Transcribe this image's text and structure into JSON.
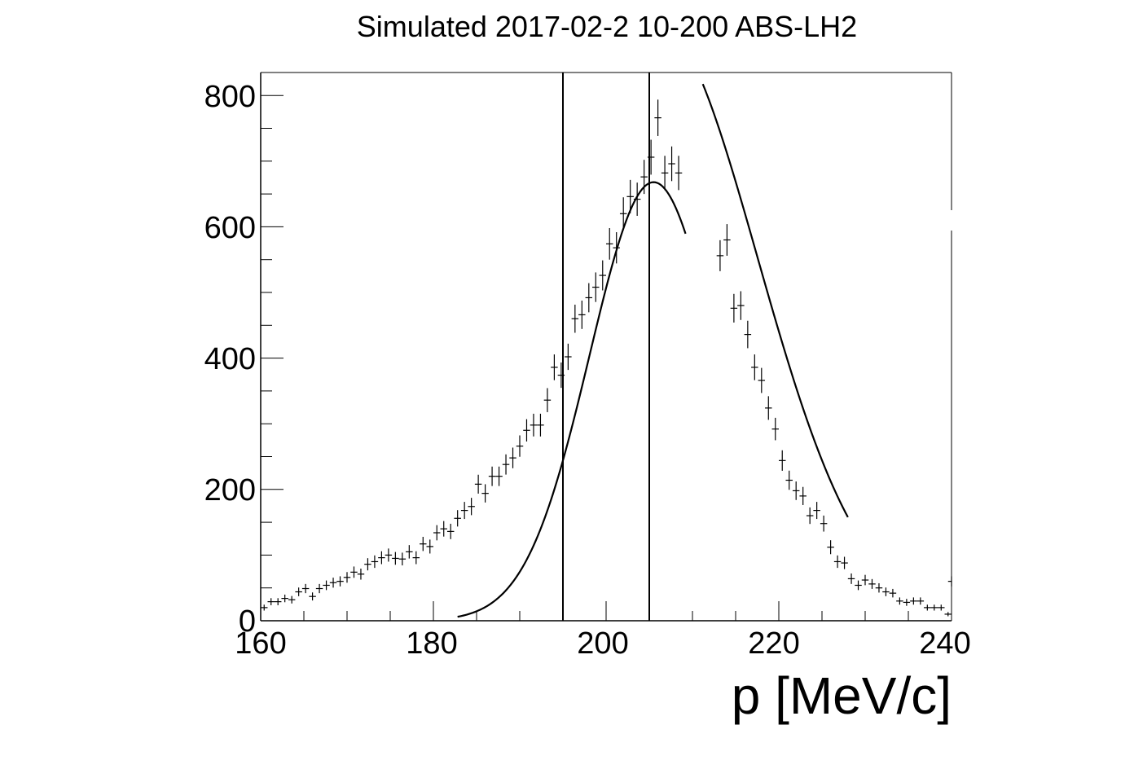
{
  "chart_data": {
    "type": "scatter",
    "title": "Simulated 2017-02-2 10-200 ABS-LH2",
    "xlabel": "p [MeV/c]",
    "ylabel": "",
    "xlim": [
      160,
      240
    ],
    "ylim": [
      0,
      835
    ],
    "x_ticks": [
      160,
      180,
      200,
      220,
      240
    ],
    "x_tick_labels": [
      "160",
      "180",
      "200",
      "220",
      "240"
    ],
    "y_ticks": [
      0,
      200,
      400,
      600,
      800
    ],
    "y_tick_labels": [
      "0",
      "200",
      "400",
      "600",
      "800"
    ],
    "bin_half_width": 0.4,
    "histogram": {
      "name": "",
      "points": [
        {
          "x": 160.4,
          "y": 20,
          "err": 4.5
        },
        {
          "x": 161.2,
          "y": 29,
          "err": 5.4
        },
        {
          "x": 162.0,
          "y": 29,
          "err": 5.4
        },
        {
          "x": 162.8,
          "y": 34,
          "err": 5.8
        },
        {
          "x": 163.6,
          "y": 32,
          "err": 5.7
        },
        {
          "x": 164.4,
          "y": 44,
          "err": 6.6
        },
        {
          "x": 165.2,
          "y": 49,
          "err": 7.0
        },
        {
          "x": 166.0,
          "y": 37,
          "err": 6.1
        },
        {
          "x": 166.8,
          "y": 49,
          "err": 7.0
        },
        {
          "x": 167.6,
          "y": 54,
          "err": 7.3
        },
        {
          "x": 168.4,
          "y": 58,
          "err": 7.6
        },
        {
          "x": 169.2,
          "y": 60,
          "err": 7.7
        },
        {
          "x": 170.0,
          "y": 66,
          "err": 8.1
        },
        {
          "x": 170.8,
          "y": 74,
          "err": 8.6
        },
        {
          "x": 171.6,
          "y": 71,
          "err": 8.4
        },
        {
          "x": 172.4,
          "y": 86,
          "err": 9.3
        },
        {
          "x": 173.2,
          "y": 90,
          "err": 9.5
        },
        {
          "x": 174.0,
          "y": 96,
          "err": 9.8
        },
        {
          "x": 174.8,
          "y": 100,
          "err": 10.0
        },
        {
          "x": 175.6,
          "y": 95,
          "err": 9.7
        },
        {
          "x": 176.4,
          "y": 94,
          "err": 9.7
        },
        {
          "x": 177.2,
          "y": 105,
          "err": 10.2
        },
        {
          "x": 178.0,
          "y": 96,
          "err": 9.8
        },
        {
          "x": 178.8,
          "y": 117,
          "err": 10.8
        },
        {
          "x": 179.6,
          "y": 113,
          "err": 10.6
        },
        {
          "x": 180.4,
          "y": 134,
          "err": 11.6
        },
        {
          "x": 181.2,
          "y": 140,
          "err": 11.8
        },
        {
          "x": 182.0,
          "y": 136,
          "err": 11.7
        },
        {
          "x": 182.8,
          "y": 156,
          "err": 12.5
        },
        {
          "x": 183.6,
          "y": 168,
          "err": 13.0
        },
        {
          "x": 184.4,
          "y": 174,
          "err": 13.2
        },
        {
          "x": 185.2,
          "y": 208,
          "err": 14.4
        },
        {
          "x": 186.0,
          "y": 194,
          "err": 13.9
        },
        {
          "x": 186.8,
          "y": 220,
          "err": 14.8
        },
        {
          "x": 187.6,
          "y": 220,
          "err": 14.8
        },
        {
          "x": 188.4,
          "y": 238,
          "err": 15.4
        },
        {
          "x": 189.2,
          "y": 248,
          "err": 15.7
        },
        {
          "x": 190.0,
          "y": 266,
          "err": 16.3
        },
        {
          "x": 190.8,
          "y": 290,
          "err": 17.0
        },
        {
          "x": 191.6,
          "y": 298,
          "err": 17.3
        },
        {
          "x": 192.4,
          "y": 298,
          "err": 17.3
        },
        {
          "x": 193.2,
          "y": 336,
          "err": 18.3
        },
        {
          "x": 194.0,
          "y": 386,
          "err": 19.6
        },
        {
          "x": 194.8,
          "y": 374,
          "err": 19.3
        },
        {
          "x": 195.6,
          "y": 402,
          "err": 20.0
        },
        {
          "x": 196.4,
          "y": 460,
          "err": 21.4
        },
        {
          "x": 197.2,
          "y": 466,
          "err": 21.6
        },
        {
          "x": 198.0,
          "y": 492,
          "err": 22.2
        },
        {
          "x": 198.8,
          "y": 508,
          "err": 22.5
        },
        {
          "x": 199.6,
          "y": 526,
          "err": 22.9
        },
        {
          "x": 200.4,
          "y": 574,
          "err": 24.0
        },
        {
          "x": 201.2,
          "y": 568,
          "err": 23.8
        },
        {
          "x": 202.0,
          "y": 620,
          "err": 24.9
        },
        {
          "x": 202.8,
          "y": 646,
          "err": 25.4
        },
        {
          "x": 203.6,
          "y": 642,
          "err": 25.3
        },
        {
          "x": 204.4,
          "y": 676,
          "err": 26.0
        },
        {
          "x": 205.2,
          "y": 706,
          "err": 26.6
        },
        {
          "x": 206.0,
          "y": 766,
          "err": 27.7
        },
        {
          "x": 206.8,
          "y": 682,
          "err": 26.1
        },
        {
          "x": 207.6,
          "y": 696,
          "err": 26.4
        },
        {
          "x": 208.4,
          "y": 682,
          "err": 26.1
        },
        {
          "x": 213.2,
          "y": 556,
          "err": 23.6
        },
        {
          "x": 214.0,
          "y": 580,
          "err": 24.1
        },
        {
          "x": 214.8,
          "y": 476,
          "err": 21.8
        },
        {
          "x": 215.6,
          "y": 480,
          "err": 21.9
        },
        {
          "x": 216.4,
          "y": 436,
          "err": 20.9
        },
        {
          "x": 217.2,
          "y": 386,
          "err": 19.6
        },
        {
          "x": 218.0,
          "y": 366,
          "err": 19.1
        },
        {
          "x": 218.8,
          "y": 324,
          "err": 18.0
        },
        {
          "x": 219.6,
          "y": 292,
          "err": 17.1
        },
        {
          "x": 220.4,
          "y": 244,
          "err": 15.6
        },
        {
          "x": 221.2,
          "y": 214,
          "err": 14.6
        },
        {
          "x": 222.0,
          "y": 198,
          "err": 14.1
        },
        {
          "x": 222.8,
          "y": 190,
          "err": 13.8
        },
        {
          "x": 223.6,
          "y": 160,
          "err": 12.6
        },
        {
          "x": 224.4,
          "y": 168,
          "err": 13.0
        },
        {
          "x": 225.2,
          "y": 148,
          "err": 12.2
        },
        {
          "x": 226.0,
          "y": 112,
          "err": 10.6
        },
        {
          "x": 226.8,
          "y": 90,
          "err": 9.5
        },
        {
          "x": 227.6,
          "y": 88,
          "err": 9.4
        },
        {
          "x": 228.4,
          "y": 64,
          "err": 8.0
        },
        {
          "x": 229.2,
          "y": 54,
          "err": 7.3
        },
        {
          "x": 230.0,
          "y": 62,
          "err": 7.9
        },
        {
          "x": 230.8,
          "y": 56,
          "err": 7.5
        },
        {
          "x": 231.6,
          "y": 50,
          "err": 7.1
        },
        {
          "x": 232.4,
          "y": 44,
          "err": 6.6
        },
        {
          "x": 233.2,
          "y": 42,
          "err": 6.5
        },
        {
          "x": 234.0,
          "y": 30,
          "err": 5.5
        },
        {
          "x": 234.8,
          "y": 28,
          "err": 5.3
        },
        {
          "x": 235.6,
          "y": 30,
          "err": 5.5
        },
        {
          "x": 236.4,
          "y": 30,
          "err": 5.5
        },
        {
          "x": 237.2,
          "y": 20,
          "err": 4.5
        },
        {
          "x": 238.0,
          "y": 20,
          "err": 4.5
        },
        {
          "x": 238.8,
          "y": 20,
          "err": 4.5
        },
        {
          "x": 239.6,
          "y": 10,
          "err": 3.2
        },
        {
          "x": 240.0,
          "y": 60,
          "err": 7.7
        }
      ]
    },
    "fit_curves": [
      {
        "name": "",
        "x_range": [
          182.8,
          209.2
        ],
        "peak_x": 205.5,
        "peak_y": 668,
        "sigma": 7.4
      },
      {
        "name": "",
        "x_range": [
          211.2,
          228.0
        ],
        "peak_x": 205.5,
        "peak_y": 915,
        "sigma": 12.0
      }
    ],
    "vertical_lines": [
      195,
      205
    ],
    "grid": false,
    "legend": false
  }
}
